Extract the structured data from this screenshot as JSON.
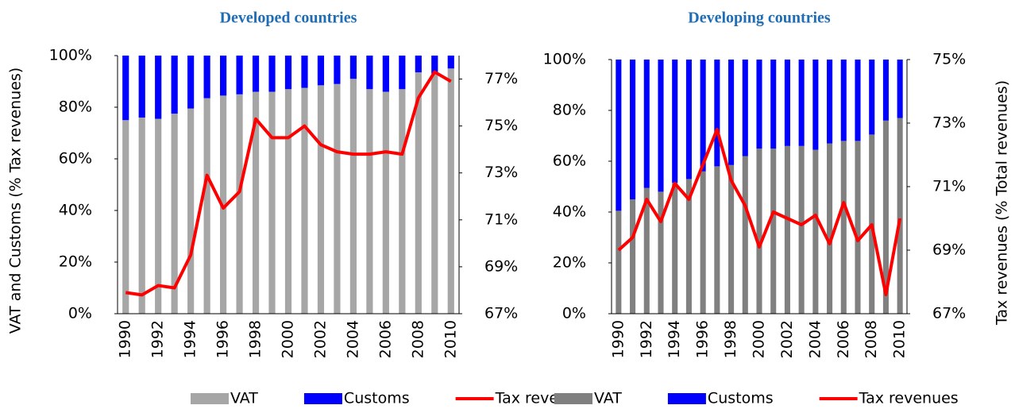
{
  "chart_data": [
    {
      "type": "bar",
      "stacked": true,
      "title": "Developed countries",
      "y_label": "VAT and Customs (% Tax revenues)",
      "categories": [
        "1990",
        null,
        "1992",
        null,
        "1994",
        null,
        "1996",
        null,
        "1998",
        null,
        "2000",
        null,
        "2002",
        null,
        "2004",
        null,
        "2006",
        null,
        "2008",
        null,
        "2010"
      ],
      "series": [
        {
          "name": "VAT",
          "color": "#a6a6a6",
          "values": [
            75,
            76,
            75.5,
            77.5,
            79.5,
            83.5,
            84.5,
            85,
            86,
            86,
            87,
            87.5,
            88.5,
            89,
            91,
            87,
            86,
            87,
            93.5,
            93,
            95
          ]
        },
        {
          "name": "Customs",
          "color": "#0000ff",
          "values": [
            25,
            24,
            24.5,
            22.5,
            20.5,
            16.5,
            15.5,
            15,
            14,
            14,
            13,
            12.5,
            11.5,
            11,
            9,
            13,
            14,
            13,
            6.5,
            7,
            5
          ]
        },
        {
          "name": "Tax revenue",
          "color": "#ff0000",
          "axis": "y2",
          "type": "line",
          "values": [
            67.9,
            67.8,
            68.2,
            68.1,
            69.5,
            72.9,
            71.5,
            72.2,
            75.3,
            74.5,
            74.5,
            75.0,
            74.2,
            73.9,
            73.8,
            73.8,
            73.9,
            73.8,
            76.2,
            77.3,
            76.9
          ]
        }
      ],
      "ylim": [
        0,
        100
      ],
      "yticks": [
        {
          "value": 0,
          "label": "0%"
        },
        {
          "value": 20,
          "label": "20%"
        },
        {
          "value": 40,
          "label": "40%"
        },
        {
          "value": 60,
          "label": "60%"
        },
        {
          "value": 80,
          "label": "80%"
        },
        {
          "value": 100,
          "label": "100%"
        }
      ],
      "y2lim": [
        67,
        78
      ],
      "y2ticks": [
        {
          "value": 67,
          "label": "67%"
        },
        {
          "value": 69,
          "label": "69%"
        },
        {
          "value": 71,
          "label": "71%"
        },
        {
          "value": 73,
          "label": "73%"
        },
        {
          "value": 75,
          "label": "75%"
        },
        {
          "value": 77,
          "label": "77%"
        }
      ],
      "legend": "bottom"
    },
    {
      "type": "bar",
      "stacked": true,
      "title": "Developing countries",
      "y2_label": "Tax revenues (% Total revenues)",
      "categories": [
        "1990",
        null,
        "1992",
        null,
        "1994",
        null,
        "1996",
        null,
        "1998",
        null,
        "2000",
        null,
        "2002",
        null,
        "2004",
        null,
        "2006",
        null,
        "2008",
        null,
        "2010"
      ],
      "series": [
        {
          "name": "VAT",
          "color": "#808080",
          "values": [
            40.5,
            45,
            49.5,
            48,
            51.5,
            53,
            56,
            58,
            58.5,
            62,
            65,
            65,
            66,
            66,
            64.5,
            67,
            68,
            68,
            70.5,
            76,
            77
          ]
        },
        {
          "name": "Customs",
          "color": "#0000ff",
          "values": [
            59.5,
            55,
            50.5,
            52,
            48.5,
            47,
            44,
            42,
            41.5,
            38,
            35,
            35,
            34,
            34,
            35.5,
            33,
            32,
            32,
            29.5,
            24,
            23
          ]
        },
        {
          "name": "Tax revenues",
          "color": "#ff0000",
          "axis": "y2",
          "type": "line",
          "values": [
            69.0,
            69.4,
            70.6,
            69.9,
            71.1,
            70.6,
            71.7,
            72.8,
            71.2,
            70.4,
            69.1,
            70.2,
            70.0,
            69.8,
            70.1,
            69.2,
            70.5,
            69.3,
            69.8,
            67.6,
            70.0
          ]
        }
      ],
      "ylim": [
        0,
        100
      ],
      "yticks": [
        {
          "value": 0,
          "label": "0%"
        },
        {
          "value": 20,
          "label": "20%"
        },
        {
          "value": 40,
          "label": "40%"
        },
        {
          "value": 60,
          "label": "60%"
        },
        {
          "value": 80,
          "label": "80%"
        },
        {
          "value": 100,
          "label": "100%"
        }
      ],
      "y2lim": [
        67,
        75
      ],
      "y2ticks": [
        {
          "value": 67,
          "label": "67%"
        },
        {
          "value": 69,
          "label": "69%"
        },
        {
          "value": 71,
          "label": "71%"
        },
        {
          "value": 73,
          "label": "73%"
        },
        {
          "value": 75,
          "label": "75%"
        }
      ],
      "legend": "bottom"
    }
  ]
}
